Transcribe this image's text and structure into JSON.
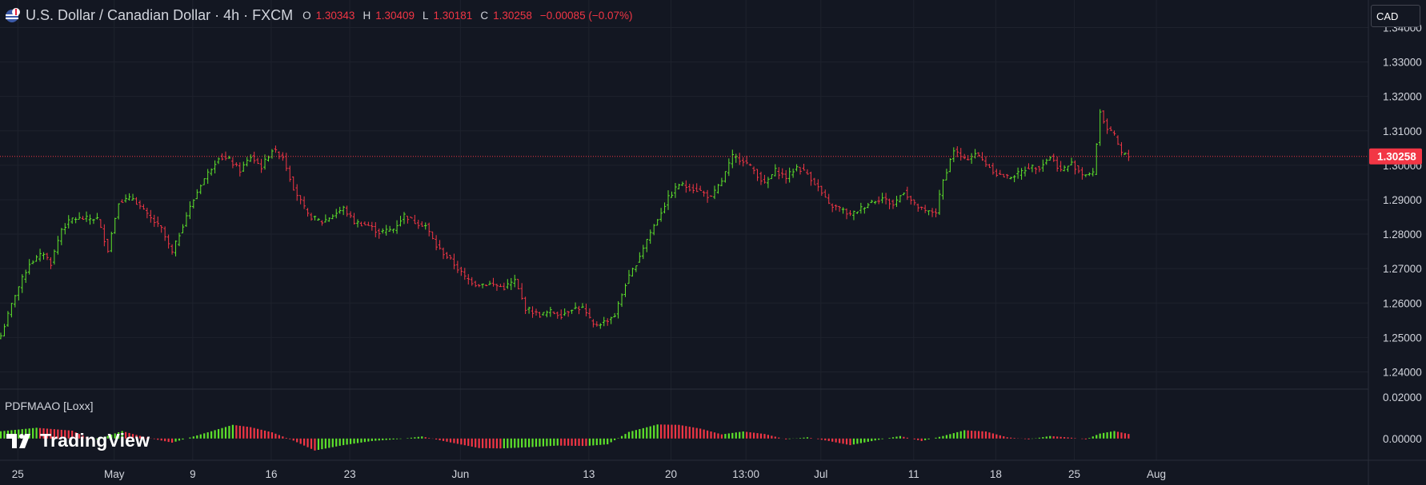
{
  "header": {
    "symbol_title": "U.S. Dollar / Canadian Dollar · 4h · FXCM",
    "open_label": "O",
    "open": "1.30343",
    "high_label": "H",
    "high": "1.30409",
    "low_label": "L",
    "low": "1.30181",
    "close_label": "C",
    "close": "1.30258",
    "change": "−0.00085 (−0.07%)"
  },
  "currency": "CAD",
  "last_price": "1.30258",
  "price_axis": [
    "1.34000",
    "1.33000",
    "1.32000",
    "1.31000",
    "1.30000",
    "1.29000",
    "1.28000",
    "1.27000",
    "1.26000",
    "1.25000",
    "1.24000"
  ],
  "indicator": {
    "name": "PDFMAAO [Loxx]",
    "axis": [
      "0.02000",
      "0.00000"
    ]
  },
  "time_axis": [
    "25",
    "May",
    "9",
    "16",
    "23",
    "Jun",
    "13",
    "20",
    "13:00",
    "Jul",
    "11",
    "18",
    "25",
    "Aug"
  ],
  "logo_text": "TradingView",
  "colors": {
    "background": "#131722",
    "up": "#5ee32b",
    "down": "#f23645",
    "grid": "#1e222d",
    "axis_text": "#d1d4dc"
  },
  "chart_data": {
    "type": "ohlc",
    "title": "U.S. Dollar / Canadian Dollar · 4h · FXCM",
    "ylim": [
      1.235,
      1.348
    ],
    "close_path": [
      {
        "bar": 0,
        "close": 1.2505
      },
      {
        "bar": 4,
        "close": 1.2625
      },
      {
        "bar": 8,
        "close": 1.2715
      },
      {
        "bar": 12,
        "close": 1.2745
      },
      {
        "bar": 14,
        "close": 1.2715
      },
      {
        "bar": 17,
        "close": 1.2815
      },
      {
        "bar": 20,
        "close": 1.2845
      },
      {
        "bar": 24,
        "close": 1.2845
      },
      {
        "bar": 27,
        "close": 1.2845
      },
      {
        "bar": 30,
        "close": 1.2755
      },
      {
        "bar": 33,
        "close": 1.2895
      },
      {
        "bar": 37,
        "close": 1.2905
      },
      {
        "bar": 41,
        "close": 1.2855
      },
      {
        "bar": 45,
        "close": 1.2815
      },
      {
        "bar": 48,
        "close": 1.2745
      },
      {
        "bar": 52,
        "close": 1.2855
      },
      {
        "bar": 56,
        "close": 1.2945
      },
      {
        "bar": 61,
        "close": 1.3025
      },
      {
        "bar": 64,
        "close": 1.3015
      },
      {
        "bar": 67,
        "close": 1.2985
      },
      {
        "bar": 70,
        "close": 1.3025
      },
      {
        "bar": 73,
        "close": 1.2995
      },
      {
        "bar": 76,
        "close": 1.3045
      },
      {
        "bar": 79,
        "close": 1.3025
      },
      {
        "bar": 82,
        "close": 1.2935
      },
      {
        "bar": 86,
        "close": 1.2855
      },
      {
        "bar": 90,
        "close": 1.2835
      },
      {
        "bar": 93,
        "close": 1.2855
      },
      {
        "bar": 96,
        "close": 1.2875
      },
      {
        "bar": 99,
        "close": 1.2835
      },
      {
        "bar": 103,
        "close": 1.2825
      },
      {
        "bar": 106,
        "close": 1.2805
      },
      {
        "bar": 110,
        "close": 1.2815
      },
      {
        "bar": 113,
        "close": 1.2855
      },
      {
        "bar": 116,
        "close": 1.2835
      },
      {
        "bar": 119,
        "close": 1.2825
      },
      {
        "bar": 122,
        "close": 1.2765
      },
      {
        "bar": 126,
        "close": 1.2725
      },
      {
        "bar": 130,
        "close": 1.2675
      },
      {
        "bar": 133,
        "close": 1.2655
      },
      {
        "bar": 137,
        "close": 1.2655
      },
      {
        "bar": 141,
        "close": 1.2645
      },
      {
        "bar": 144,
        "close": 1.2665
      },
      {
        "bar": 147,
        "close": 1.2585
      },
      {
        "bar": 151,
        "close": 1.2565
      },
      {
        "bar": 154,
        "close": 1.2575
      },
      {
        "bar": 157,
        "close": 1.2565
      },
      {
        "bar": 160,
        "close": 1.2585
      },
      {
        "bar": 163,
        "close": 1.2585
      },
      {
        "bar": 166,
        "close": 1.2535
      },
      {
        "bar": 169,
        "close": 1.2545
      },
      {
        "bar": 172,
        "close": 1.2565
      },
      {
        "bar": 175,
        "close": 1.2655
      },
      {
        "bar": 178,
        "close": 1.2715
      },
      {
        "bar": 181,
        "close": 1.2785
      },
      {
        "bar": 184,
        "close": 1.2845
      },
      {
        "bar": 187,
        "close": 1.2905
      },
      {
        "bar": 190,
        "close": 1.2945
      },
      {
        "bar": 193,
        "close": 1.2935
      },
      {
        "bar": 196,
        "close": 1.2925
      },
      {
        "bar": 199,
        "close": 1.2905
      },
      {
        "bar": 202,
        "close": 1.2955
      },
      {
        "bar": 205,
        "close": 1.3025
      },
      {
        "bar": 208,
        "close": 1.3015
      },
      {
        "bar": 211,
        "close": 1.2985
      },
      {
        "bar": 214,
        "close": 1.2945
      },
      {
        "bar": 217,
        "close": 1.2985
      },
      {
        "bar": 220,
        "close": 1.2965
      },
      {
        "bar": 223,
        "close": 1.2995
      },
      {
        "bar": 226,
        "close": 1.2975
      },
      {
        "bar": 229,
        "close": 1.2935
      },
      {
        "bar": 232,
        "close": 1.2885
      },
      {
        "bar": 235,
        "close": 1.2875
      },
      {
        "bar": 238,
        "close": 1.2855
      },
      {
        "bar": 241,
        "close": 1.2875
      },
      {
        "bar": 244,
        "close": 1.2895
      },
      {
        "bar": 247,
        "close": 1.2905
      },
      {
        "bar": 250,
        "close": 1.2885
      },
      {
        "bar": 253,
        "close": 1.2925
      },
      {
        "bar": 256,
        "close": 1.2885
      },
      {
        "bar": 259,
        "close": 1.2865
      },
      {
        "bar": 262,
        "close": 1.2865
      },
      {
        "bar": 264,
        "close": 1.2955
      },
      {
        "bar": 267,
        "close": 1.3045
      },
      {
        "bar": 270,
        "close": 1.3015
      },
      {
        "bar": 273,
        "close": 1.3035
      },
      {
        "bar": 276,
        "close": 1.3005
      },
      {
        "bar": 279,
        "close": 1.2975
      },
      {
        "bar": 282,
        "close": 1.2965
      },
      {
        "bar": 285,
        "close": 1.2975
      },
      {
        "bar": 288,
        "close": 1.2995
      },
      {
        "bar": 291,
        "close": 1.2995
      },
      {
        "bar": 294,
        "close": 1.3025
      },
      {
        "bar": 297,
        "close": 1.2985
      },
      {
        "bar": 300,
        "close": 1.3005
      },
      {
        "bar": 303,
        "close": 1.2975
      },
      {
        "bar": 306,
        "close": 1.2975
      },
      {
        "bar": 308,
        "close": 1.3155
      },
      {
        "bar": 310,
        "close": 1.3105
      },
      {
        "bar": 312,
        "close": 1.3085
      },
      {
        "bar": 314,
        "close": 1.3035
      },
      {
        "bar": 316,
        "close": 1.3026
      }
    ],
    "indicator_series": [
      {
        "bar": 0,
        "value": 0.0035
      },
      {
        "bar": 10,
        "value": 0.0052
      },
      {
        "bar": 20,
        "value": 0.0038
      },
      {
        "bar": 26,
        "value": -0.001
      },
      {
        "bar": 34,
        "value": 0.0036
      },
      {
        "bar": 40,
        "value": 0.0008
      },
      {
        "bar": 48,
        "value": -0.002
      },
      {
        "bar": 58,
        "value": 0.003
      },
      {
        "bar": 65,
        "value": 0.0066
      },
      {
        "bar": 70,
        "value": 0.0055
      },
      {
        "bar": 76,
        "value": 0.003
      },
      {
        "bar": 82,
        "value": -0.001
      },
      {
        "bar": 88,
        "value": -0.0058
      },
      {
        "bar": 96,
        "value": -0.0032
      },
      {
        "bar": 104,
        "value": -0.0012
      },
      {
        "bar": 112,
        "value": -0.0002
      },
      {
        "bar": 118,
        "value": 0.001
      },
      {
        "bar": 124,
        "value": -0.0012
      },
      {
        "bar": 134,
        "value": -0.0046
      },
      {
        "bar": 140,
        "value": -0.0048
      },
      {
        "bar": 148,
        "value": -0.0042
      },
      {
        "bar": 156,
        "value": -0.0034
      },
      {
        "bar": 164,
        "value": -0.0036
      },
      {
        "bar": 170,
        "value": -0.0028
      },
      {
        "bar": 176,
        "value": 0.0032
      },
      {
        "bar": 184,
        "value": 0.0068
      },
      {
        "bar": 190,
        "value": 0.0066
      },
      {
        "bar": 196,
        "value": 0.0048
      },
      {
        "bar": 202,
        "value": 0.002
      },
      {
        "bar": 208,
        "value": 0.0034
      },
      {
        "bar": 214,
        "value": 0.0022
      },
      {
        "bar": 220,
        "value": -0.0004
      },
      {
        "bar": 226,
        "value": 0.0006
      },
      {
        "bar": 232,
        "value": -0.0012
      },
      {
        "bar": 238,
        "value": -0.0032
      },
      {
        "bar": 246,
        "value": -0.0006
      },
      {
        "bar": 252,
        "value": 0.0012
      },
      {
        "bar": 258,
        "value": -0.0012
      },
      {
        "bar": 264,
        "value": 0.0012
      },
      {
        "bar": 270,
        "value": 0.004
      },
      {
        "bar": 276,
        "value": 0.0034
      },
      {
        "bar": 282,
        "value": 0.0006
      },
      {
        "bar": 288,
        "value": -0.0004
      },
      {
        "bar": 294,
        "value": 0.0012
      },
      {
        "bar": 300,
        "value": 0.0004
      },
      {
        "bar": 304,
        "value": -0.0004
      },
      {
        "bar": 308,
        "value": 0.0024
      },
      {
        "bar": 312,
        "value": 0.0036
      },
      {
        "bar": 316,
        "value": 0.0022
      }
    ],
    "indicator_ylim": [
      -0.0105,
      0.0235
    ]
  }
}
